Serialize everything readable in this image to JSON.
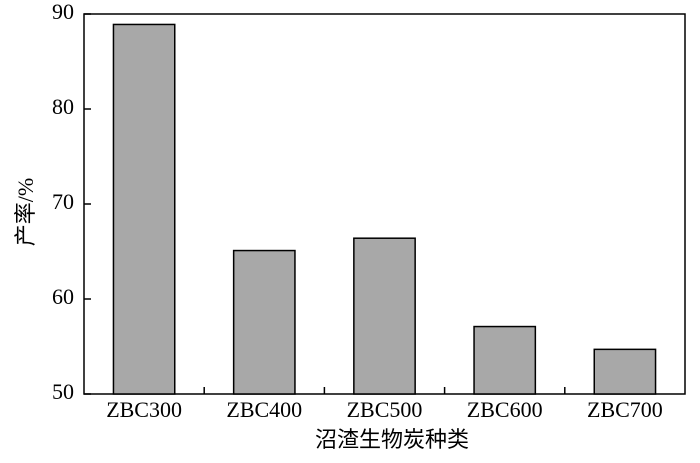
{
  "chart_data": {
    "type": "bar",
    "x_label": "沼渣生物炭种类",
    "y_label": "产率/%",
    "categories": [
      "ZBC300",
      "ZBC400",
      "ZBC500",
      "ZBC600",
      "ZBC700"
    ],
    "values": [
      88.9,
      65.1,
      66.4,
      57.1,
      54.7
    ],
    "color": "#a8a8a8",
    "ylim": [
      50,
      90
    ],
    "yticks": [
      50,
      60,
      70,
      80,
      90
    ],
    "grid": false
  }
}
